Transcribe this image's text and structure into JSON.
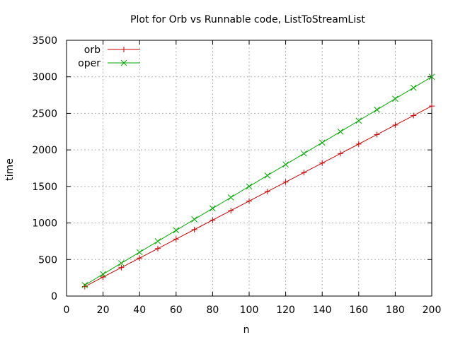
{
  "chart_data": {
    "type": "line",
    "title": "Plot for Orb vs Runnable code, ListToStreamList",
    "xlabel": "n",
    "ylabel": "time",
    "xlim": [
      0,
      200
    ],
    "ylim": [
      0,
      3500
    ],
    "xticks": [
      0,
      20,
      40,
      60,
      80,
      100,
      120,
      140,
      160,
      180,
      200
    ],
    "yticks": [
      0,
      500,
      1000,
      1500,
      2000,
      2500,
      3000,
      3500
    ],
    "grid": true,
    "legend_position": "top-left",
    "x": [
      10,
      20,
      30,
      40,
      50,
      60,
      70,
      80,
      90,
      100,
      110,
      120,
      130,
      140,
      150,
      160,
      170,
      180,
      190,
      200
    ],
    "series": [
      {
        "name": "orb",
        "color": "#cc0000",
        "marker": "plus",
        "values": [
          130,
          260,
          390,
          520,
          650,
          780,
          910,
          1040,
          1170,
          1300,
          1430,
          1560,
          1690,
          1820,
          1950,
          2080,
          2210,
          2340,
          2470,
          2600
        ]
      },
      {
        "name": "oper",
        "color": "#00aa00",
        "marker": "cross",
        "values": [
          150,
          300,
          450,
          600,
          750,
          900,
          1050,
          1200,
          1350,
          1500,
          1650,
          1800,
          1950,
          2100,
          2250,
          2400,
          2550,
          2700,
          2850,
          3000
        ]
      }
    ]
  }
}
